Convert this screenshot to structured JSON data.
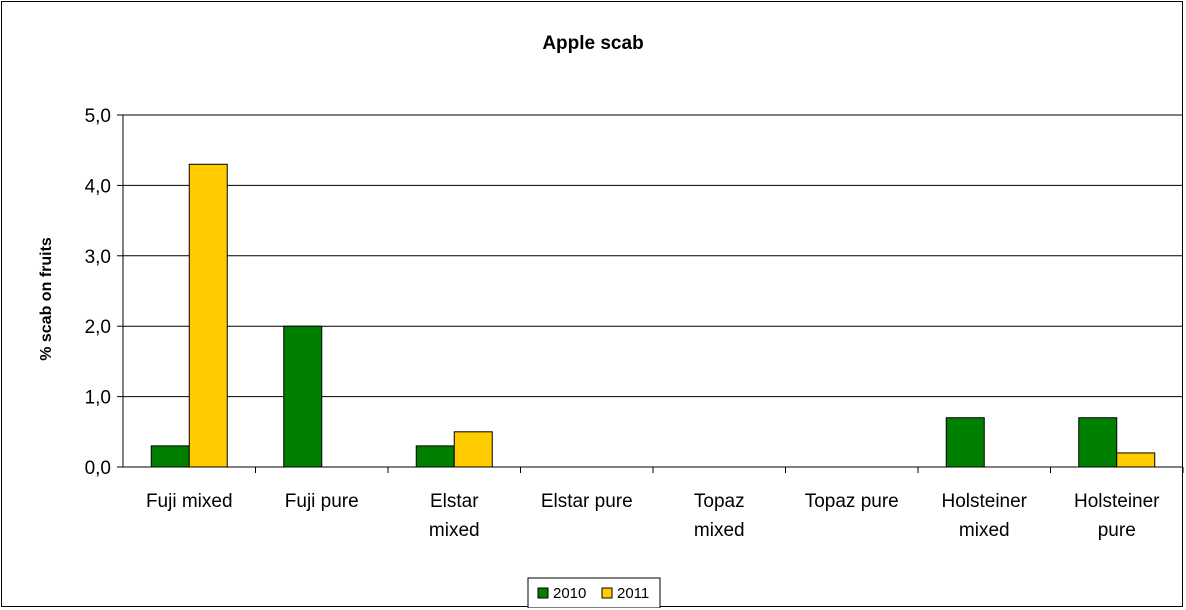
{
  "chart_data": {
    "type": "bar",
    "title": "Apple scab",
    "xlabel": "",
    "ylabel": "% scab on fruits",
    "ylim": [
      0,
      5
    ],
    "yticks": [
      "0,0",
      "1,0",
      "2,0",
      "3,0",
      "4,0",
      "5,0"
    ],
    "categories": [
      [
        "Fuji mixed"
      ],
      [
        "Fuji pure"
      ],
      [
        "Elstar",
        "mixed"
      ],
      [
        "Elstar pure"
      ],
      [
        "Topaz",
        "mixed"
      ],
      [
        "Topaz pure"
      ],
      [
        "Holsteiner",
        "mixed"
      ],
      [
        "Holsteiner",
        "pure"
      ]
    ],
    "series": [
      {
        "name": "2010",
        "color": "#008000",
        "values": [
          0.3,
          2.0,
          0.3,
          0,
          0,
          0,
          0.7,
          0.7
        ]
      },
      {
        "name": "2011",
        "color": "#FFCC00",
        "values": [
          4.3,
          0,
          0.5,
          0,
          0,
          0,
          0,
          0.2
        ]
      }
    ],
    "grid": true,
    "legend_position": "bottom"
  }
}
